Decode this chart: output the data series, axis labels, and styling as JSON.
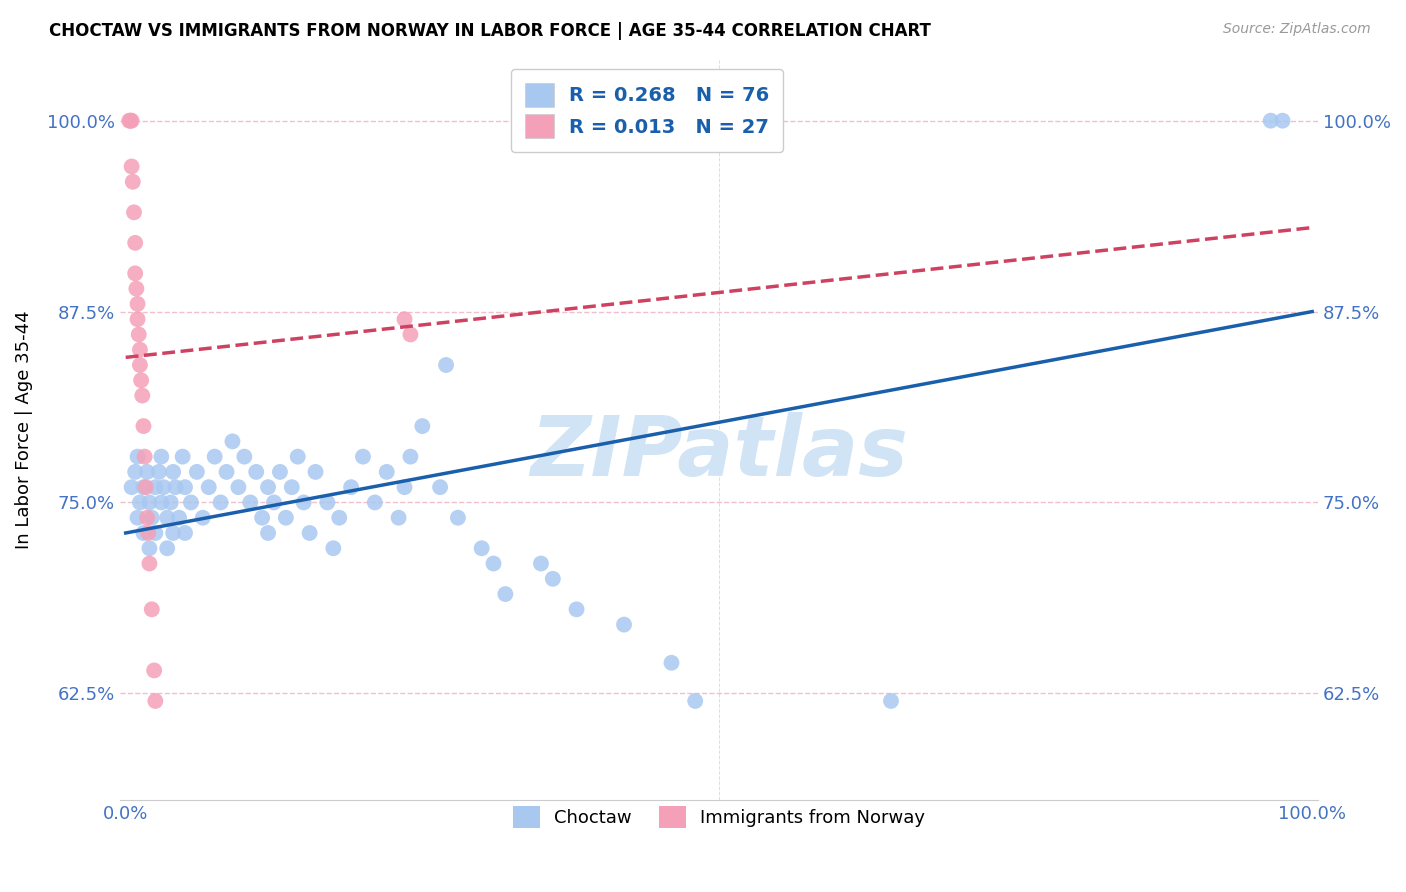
{
  "title": "CHOCTAW VS IMMIGRANTS FROM NORWAY IN LABOR FORCE | AGE 35-44 CORRELATION CHART",
  "source": "Source: ZipAtlas.com",
  "ylabel": "In Labor Force | Age 35-44",
  "xlim": [
    -0.005,
    1.005
  ],
  "ylim": [
    0.555,
    1.04
  ],
  "yticks": [
    0.625,
    0.75,
    0.875,
    1.0
  ],
  "ytick_labels": [
    "62.5%",
    "75.0%",
    "87.5%",
    "100.0%"
  ],
  "xtick_vals": [
    0.0,
    0.1,
    0.2,
    0.3,
    0.4,
    0.5,
    0.6,
    0.7,
    0.8,
    0.9,
    1.0
  ],
  "xtick_labels": [
    "0.0%",
    "",
    "",
    "",
    "",
    "",
    "",
    "",
    "",
    "",
    "100.0%"
  ],
  "choctaw_R": 0.268,
  "choctaw_N": 76,
  "norway_R": 0.013,
  "norway_N": 27,
  "choctaw_color": "#A8C8F0",
  "norway_color": "#F4A0B8",
  "choctaw_line_color": "#1A5FAB",
  "norway_line_color": "#D04060",
  "tick_color": "#4472C4",
  "grid_color": "#F0C0CC",
  "background": "#FFFFFF",
  "watermark_text": "ZIPatlas",
  "watermark_color": "#D0E4F5",
  "legend_text_color": "#1A5FAB",
  "choctaw_x": [
    0.005,
    0.008,
    0.01,
    0.01,
    0.012,
    0.015,
    0.015,
    0.018,
    0.02,
    0.02,
    0.022,
    0.025,
    0.025,
    0.028,
    0.03,
    0.03,
    0.032,
    0.035,
    0.035,
    0.038,
    0.04,
    0.04,
    0.042,
    0.045,
    0.048,
    0.05,
    0.05,
    0.055,
    0.06,
    0.065,
    0.07,
    0.075,
    0.08,
    0.085,
    0.09,
    0.095,
    0.1,
    0.105,
    0.11,
    0.115,
    0.12,
    0.12,
    0.125,
    0.13,
    0.135,
    0.14,
    0.145,
    0.15,
    0.155,
    0.16,
    0.17,
    0.175,
    0.18,
    0.19,
    0.2,
    0.21,
    0.22,
    0.23,
    0.235,
    0.24,
    0.25,
    0.265,
    0.27,
    0.28,
    0.3,
    0.31,
    0.32,
    0.35,
    0.36,
    0.38,
    0.42,
    0.46,
    0.48,
    0.645,
    0.965,
    0.975
  ],
  "choctaw_y": [
    0.76,
    0.77,
    0.74,
    0.78,
    0.75,
    0.73,
    0.76,
    0.77,
    0.75,
    0.72,
    0.74,
    0.76,
    0.73,
    0.77,
    0.75,
    0.78,
    0.76,
    0.74,
    0.72,
    0.75,
    0.77,
    0.73,
    0.76,
    0.74,
    0.78,
    0.76,
    0.73,
    0.75,
    0.77,
    0.74,
    0.76,
    0.78,
    0.75,
    0.77,
    0.79,
    0.76,
    0.78,
    0.75,
    0.77,
    0.74,
    0.76,
    0.73,
    0.75,
    0.77,
    0.74,
    0.76,
    0.78,
    0.75,
    0.73,
    0.77,
    0.75,
    0.72,
    0.74,
    0.76,
    0.78,
    0.75,
    0.77,
    0.74,
    0.76,
    0.78,
    0.8,
    0.76,
    0.84,
    0.74,
    0.72,
    0.71,
    0.69,
    0.71,
    0.7,
    0.68,
    0.67,
    0.645,
    0.62,
    0.62,
    1.0,
    1.0
  ],
  "norway_x": [
    0.003,
    0.004,
    0.005,
    0.005,
    0.006,
    0.007,
    0.008,
    0.008,
    0.009,
    0.01,
    0.01,
    0.011,
    0.012,
    0.012,
    0.013,
    0.014,
    0.015,
    0.016,
    0.017,
    0.018,
    0.019,
    0.02,
    0.022,
    0.024,
    0.025,
    0.235,
    0.24
  ],
  "norway_y": [
    1.0,
    1.0,
    1.0,
    0.97,
    0.96,
    0.94,
    0.92,
    0.9,
    0.89,
    0.88,
    0.87,
    0.86,
    0.85,
    0.84,
    0.83,
    0.82,
    0.8,
    0.78,
    0.76,
    0.74,
    0.73,
    0.71,
    0.68,
    0.64,
    0.62,
    0.87,
    0.86
  ],
  "choctaw_line_x0": 0.0,
  "choctaw_line_x1": 1.0,
  "choctaw_line_y0": 0.73,
  "choctaw_line_y1": 0.875,
  "norway_line_x0": 0.0,
  "norway_line_x1": 1.0,
  "norway_line_y0": 0.845,
  "norway_line_y1": 0.93
}
